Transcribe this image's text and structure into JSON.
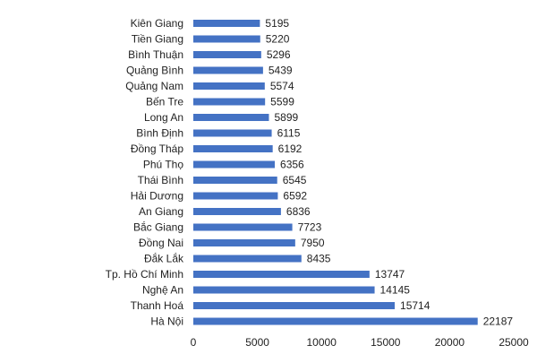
{
  "chart_data": {
    "type": "bar",
    "orientation": "horizontal",
    "categories": [
      "Kiên Giang",
      "Tiền Giang",
      "Bình Thuận",
      "Quảng Bình",
      "Quảng Nam",
      "Bến Tre",
      "Long An",
      "Bình Định",
      "Đồng Tháp",
      "Phú Thọ",
      "Thái Bình",
      "Hải Dương",
      "An Giang",
      "Bắc Giang",
      "Đồng Nai",
      "Đắk Lắk",
      "Tp. Hồ Chí Minh",
      "Nghệ An",
      "Thanh Hoá",
      "Hà Nội"
    ],
    "values": [
      5195,
      5220,
      5296,
      5439,
      5574,
      5599,
      5899,
      6115,
      6192,
      6356,
      6545,
      6592,
      6836,
      7723,
      7950,
      8435,
      13747,
      14145,
      15714,
      22187
    ],
    "value_labels": [
      "5195",
      "5220",
      "5296",
      "5439",
      "5574",
      "5599",
      "5899",
      "6115",
      "6192",
      "6356",
      "6545",
      "6592",
      "6836",
      "7723",
      "7950",
      "8435",
      "13747",
      "14145",
      "15714",
      "22187"
    ],
    "xlim": [
      0,
      25000
    ],
    "x_ticks": [
      0,
      5000,
      10000,
      15000,
      20000,
      25000
    ],
    "x_tick_labels": [
      "0",
      "5000",
      "10000",
      "15000",
      "20000",
      "25000"
    ],
    "title": "",
    "xlabel": "",
    "ylabel": "",
    "grid": false,
    "legend": "none",
    "bar_color": "#4472C4"
  }
}
